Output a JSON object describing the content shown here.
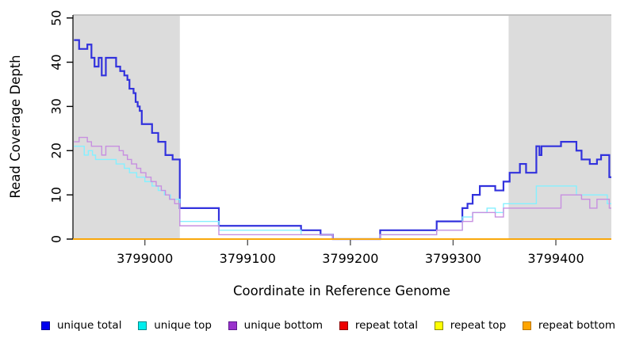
{
  "chart_data": {
    "type": "line",
    "subtype": "step",
    "title": "",
    "xlabel": "Coordinate in Reference Genome",
    "ylabel": "Read Coverage Depth",
    "xlim": [
      3798930,
      3799454
    ],
    "ylim": [
      0,
      50
    ],
    "x_ticks": [
      3799000,
      3799100,
      3799200,
      3799300,
      3799400
    ],
    "y_ticks": [
      0,
      10,
      20,
      30,
      40,
      50
    ],
    "grid": false,
    "legend_position": "bottom",
    "shade_color": "#dcdcdc",
    "shaded_regions": [
      {
        "x0": 3798930,
        "x1": 3799034
      },
      {
        "x0": 3799354,
        "x1": 3799454
      }
    ],
    "series": [
      {
        "name": "unique total",
        "color": "#3232dd",
        "legend_fill": "#0000ee",
        "legend_border": "#000090",
        "width": 2.2,
        "steps": [
          [
            3798931,
            45
          ],
          [
            3798936,
            43
          ],
          [
            3798944,
            44
          ],
          [
            3798948,
            41
          ],
          [
            3798951,
            39
          ],
          [
            3798955,
            41
          ],
          [
            3798958,
            37
          ],
          [
            3798962,
            41
          ],
          [
            3798972,
            39
          ],
          [
            3798976,
            38
          ],
          [
            3798980,
            37
          ],
          [
            3798983,
            36
          ],
          [
            3798985,
            34
          ],
          [
            3798989,
            33
          ],
          [
            3798991,
            31
          ],
          [
            3798993,
            30
          ],
          [
            3798995,
            29
          ],
          [
            3798997,
            26
          ],
          [
            3799007,
            24
          ],
          [
            3799013,
            22
          ],
          [
            3799020,
            19
          ],
          [
            3799027,
            18
          ],
          [
            3799034,
            7
          ],
          [
            3799072,
            3
          ],
          [
            3799152,
            2
          ],
          [
            3799171,
            1
          ],
          [
            3799183,
            0
          ],
          [
            3799229,
            2
          ],
          [
            3799284,
            4
          ],
          [
            3799309,
            7
          ],
          [
            3799314,
            8
          ],
          [
            3799319,
            10
          ],
          [
            3799326,
            12
          ],
          [
            3799341,
            11
          ],
          [
            3799349,
            13
          ],
          [
            3799355,
            15
          ],
          [
            3799365,
            17
          ],
          [
            3799371,
            15
          ],
          [
            3799381,
            21
          ],
          [
            3799384,
            19
          ],
          [
            3799386,
            21
          ],
          [
            3799405,
            22
          ],
          [
            3799420,
            20
          ],
          [
            3799425,
            18
          ],
          [
            3799433,
            17
          ],
          [
            3799440,
            18
          ],
          [
            3799444,
            19
          ],
          [
            3799452,
            14
          ]
        ]
      },
      {
        "name": "unique top",
        "color": "#85f0ff",
        "legend_fill": "#00eeee",
        "legend_border": "#008b8b",
        "width": 1.4,
        "steps": [
          [
            3798931,
            21
          ],
          [
            3798941,
            19
          ],
          [
            3798945,
            20
          ],
          [
            3798949,
            19
          ],
          [
            3798952,
            18
          ],
          [
            3798972,
            17
          ],
          [
            3798980,
            16
          ],
          [
            3798985,
            15
          ],
          [
            3798992,
            14
          ],
          [
            3799000,
            13
          ],
          [
            3799007,
            12
          ],
          [
            3799013,
            11
          ],
          [
            3799019,
            10
          ],
          [
            3799025,
            9
          ],
          [
            3799031,
            9
          ],
          [
            3799034,
            4
          ],
          [
            3799072,
            2
          ],
          [
            3799152,
            1
          ],
          [
            3799183,
            0
          ],
          [
            3799229,
            1
          ],
          [
            3799284,
            2
          ],
          [
            3799309,
            5
          ],
          [
            3799319,
            6
          ],
          [
            3799333,
            7
          ],
          [
            3799341,
            6
          ],
          [
            3799349,
            8
          ],
          [
            3799381,
            12
          ],
          [
            3799420,
            10
          ],
          [
            3799450,
            8
          ]
        ]
      },
      {
        "name": "unique bottom",
        "color": "#c78fe0",
        "legend_fill": "#9932cc",
        "legend_border": "#5e1a8e",
        "width": 1.4,
        "steps": [
          [
            3798931,
            22
          ],
          [
            3798936,
            23
          ],
          [
            3798944,
            22
          ],
          [
            3798948,
            21
          ],
          [
            3798958,
            19
          ],
          [
            3798962,
            21
          ],
          [
            3798975,
            20
          ],
          [
            3798979,
            19
          ],
          [
            3798983,
            18
          ],
          [
            3798987,
            17
          ],
          [
            3798992,
            16
          ],
          [
            3798996,
            15
          ],
          [
            3799001,
            14
          ],
          [
            3799006,
            13
          ],
          [
            3799011,
            12
          ],
          [
            3799016,
            11
          ],
          [
            3799020,
            10
          ],
          [
            3799024,
            9
          ],
          [
            3799029,
            8
          ],
          [
            3799034,
            3
          ],
          [
            3799072,
            1
          ],
          [
            3799183,
            0
          ],
          [
            3799229,
            1
          ],
          [
            3799284,
            2
          ],
          [
            3799309,
            4
          ],
          [
            3799319,
            6
          ],
          [
            3799341,
            5
          ],
          [
            3799349,
            7
          ],
          [
            3799405,
            10
          ],
          [
            3799425,
            9
          ],
          [
            3799433,
            7
          ],
          [
            3799440,
            9
          ],
          [
            3799452,
            7
          ]
        ]
      },
      {
        "name": "repeat total",
        "color": "#dd0000",
        "legend_fill": "#ee0000",
        "legend_border": "#8b0000",
        "width": 1.4,
        "steps": [
          [
            3798930,
            0
          ]
        ]
      },
      {
        "name": "repeat top",
        "color": "#ffff00",
        "legend_fill": "#ffff00",
        "legend_border": "#8b8b00",
        "width": 1.4,
        "steps": [
          [
            3798930,
            0
          ]
        ]
      },
      {
        "name": "repeat bottom",
        "color": "#ffa500",
        "legend_fill": "#ffa500",
        "legend_border": "#b87400",
        "width": 1.6,
        "steps": [
          [
            3798930,
            0
          ]
        ]
      }
    ]
  }
}
